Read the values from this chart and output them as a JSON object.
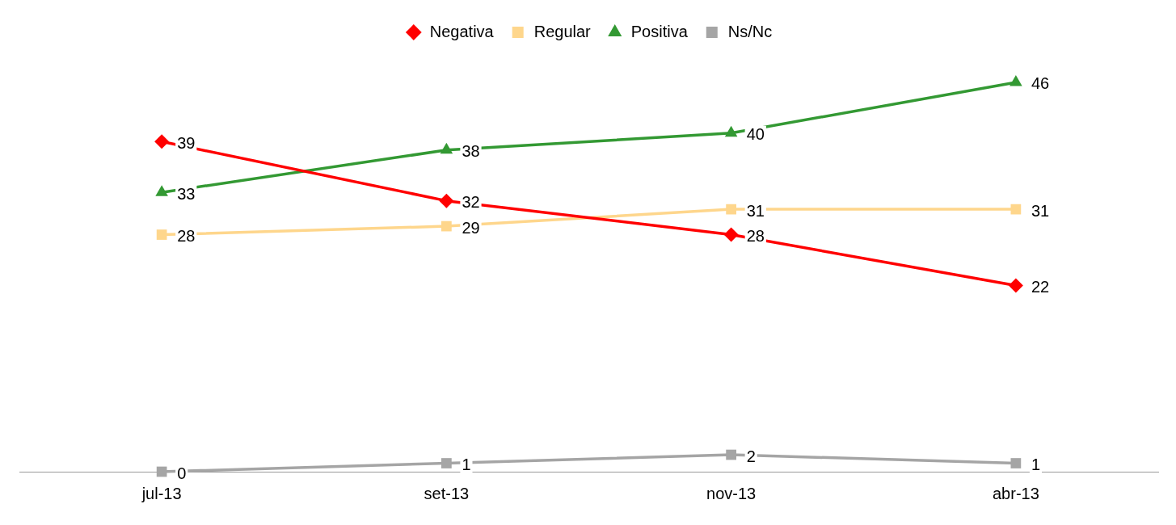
{
  "chart_data": {
    "type": "line",
    "categories": [
      "jul-13",
      "set-13",
      "nov-13",
      "abr-13"
    ],
    "series": [
      {
        "name": "Negativa",
        "color": "#ff0000",
        "marker": "diamond",
        "values": [
          39,
          32,
          28,
          22
        ]
      },
      {
        "name": "Regular",
        "color": "#fed68c",
        "marker": "square",
        "values": [
          28,
          29,
          31,
          31
        ]
      },
      {
        "name": "Positiva",
        "color": "#339933",
        "marker": "triangle",
        "values": [
          33,
          38,
          40,
          46
        ]
      },
      {
        "name": "Ns/Nc",
        "color": "#a5a5a5",
        "marker": "square",
        "values": [
          0,
          1,
          2,
          1
        ]
      }
    ],
    "data_labels": true,
    "legend": "top",
    "grid": false,
    "line_style": "solid"
  }
}
